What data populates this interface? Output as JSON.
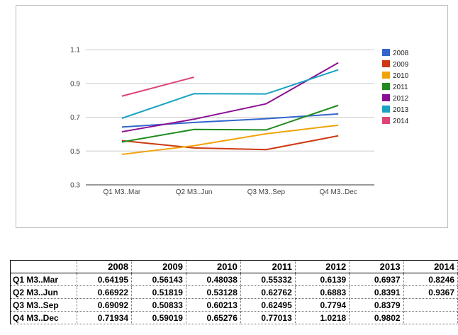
{
  "chart_data": {
    "type": "line",
    "categories": [
      "Q1 M3..Mar",
      "Q2 M3..Jun",
      "Q3 M3..Sep",
      "Q4 M3..Dec"
    ],
    "ylim": [
      0.3,
      1.1
    ],
    "yticks": [
      "0.3",
      "0.5",
      "0.7",
      "0.9",
      "1.1"
    ],
    "grid": true,
    "legend_position": "right",
    "series": [
      {
        "name": "2008",
        "color": "#3366cc",
        "values": [
          0.64195,
          0.66922,
          0.69092,
          0.71934
        ]
      },
      {
        "name": "2009",
        "color": "#cc3912",
        "values": [
          0.56143,
          0.51819,
          0.50833,
          0.59019
        ]
      },
      {
        "name": "2010",
        "color": "#f0a30a",
        "values": [
          0.48038,
          0.53128,
          0.60213,
          0.65276
        ]
      },
      {
        "name": "2011",
        "color": "#1e8c1e",
        "values": [
          0.55332,
          0.62762,
          0.62495,
          0.77013
        ]
      },
      {
        "name": "2012",
        "color": "#8b0f94",
        "values": [
          0.6139,
          0.6883,
          0.7794,
          1.0218
        ]
      },
      {
        "name": "2013",
        "color": "#1aa3c2",
        "values": [
          0.6937,
          0.8391,
          0.8379,
          0.9802
        ]
      },
      {
        "name": "2014",
        "color": "#dd4477",
        "values": [
          0.8246,
          0.9367,
          null,
          null
        ]
      }
    ]
  },
  "table": {
    "columns": [
      "2008",
      "2009",
      "2010",
      "2011",
      "2012",
      "2013",
      "2014"
    ],
    "rows": [
      {
        "label": "Q1 M3..Mar",
        "cells": [
          "0.64195",
          "0.56143",
          "0.48038",
          "0.55332",
          "0.6139",
          "0.6937",
          "0.8246"
        ]
      },
      {
        "label": "Q2 M3..Jun",
        "cells": [
          "0.66922",
          "0.51819",
          "0.53128",
          "0.62762",
          "0.6883",
          "0.8391",
          "0.9367"
        ]
      },
      {
        "label": "Q3 M3..Sep",
        "cells": [
          "0.69092",
          "0.50833",
          "0.60213",
          "0.62495",
          "0.7794",
          "0.8379",
          ""
        ]
      },
      {
        "label": "Q4 M3..Dec",
        "cells": [
          "0.71934",
          "0.59019",
          "0.65276",
          "0.77013",
          "1.0218",
          "0.9802",
          ""
        ]
      }
    ]
  }
}
